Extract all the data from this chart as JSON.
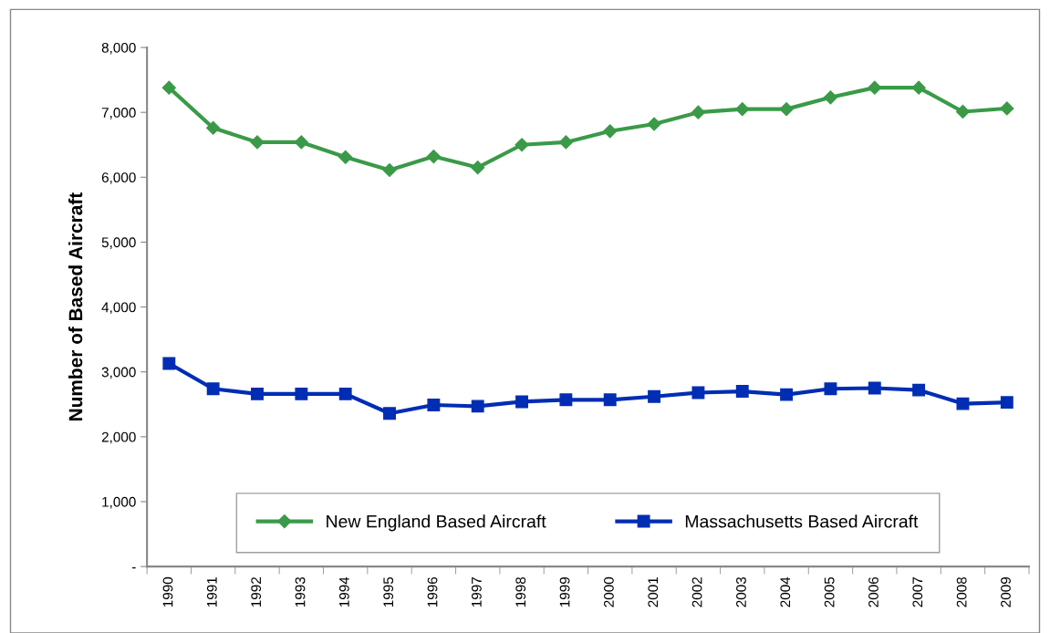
{
  "chart_data": {
    "type": "line",
    "ylabel": "Number of Based Aircraft",
    "categories": [
      "1990",
      "1991",
      "1992",
      "1993",
      "1994",
      "1995",
      "1996",
      "1997",
      "1998",
      "1999",
      "2000",
      "2001",
      "2002",
      "2003",
      "2004",
      "2005",
      "2006",
      "2007",
      "2008",
      "2009"
    ],
    "series": [
      {
        "name": "New England Based Aircraft",
        "color": "#3a9a48",
        "marker": "diamond",
        "values": [
          7380,
          6760,
          6540,
          6540,
          6310,
          6110,
          6320,
          6150,
          6500,
          6540,
          6710,
          6820,
          7000,
          7050,
          7050,
          7230,
          7380,
          7380,
          7010,
          7060
        ]
      },
      {
        "name": "Massachusetts Based Aircraft",
        "color": "#002db3",
        "marker": "square",
        "values": [
          3130,
          2740,
          2660,
          2660,
          2660,
          2360,
          2490,
          2470,
          2540,
          2570,
          2570,
          2620,
          2680,
          2700,
          2650,
          2740,
          2750,
          2720,
          2510,
          2530
        ]
      }
    ],
    "ylim": [
      0,
      8000
    ],
    "yticks": [
      {
        "value": 0,
        "label": "-"
      },
      {
        "value": 1000,
        "label": "1,000"
      },
      {
        "value": 2000,
        "label": "2,000"
      },
      {
        "value": 3000,
        "label": "3,000"
      },
      {
        "value": 4000,
        "label": "4,000"
      },
      {
        "value": 5000,
        "label": "5,000"
      },
      {
        "value": 6000,
        "label": "6,000"
      },
      {
        "value": 7000,
        "label": "7,000"
      },
      {
        "value": 8000,
        "label": "8,000"
      }
    ],
    "grid": false,
    "legend": "bottom",
    "line_style": "solid"
  }
}
